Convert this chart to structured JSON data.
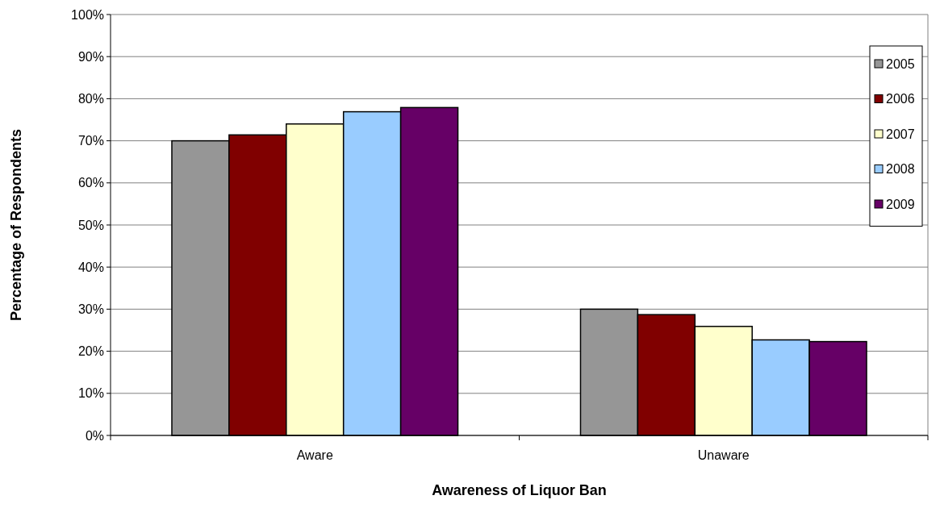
{
  "chart_data": {
    "type": "bar",
    "xlabel": "Awareness of Liquor Ban",
    "ylabel": "Percentage of Respondents",
    "categories": [
      "Aware",
      "Unaware"
    ],
    "series": [
      {
        "name": "2005",
        "color": "#969696",
        "values": [
          70.0,
          30.0
        ]
      },
      {
        "name": "2006",
        "color": "#800000",
        "values": [
          71.4,
          28.7
        ]
      },
      {
        "name": "2007",
        "color": "#ffffcc",
        "values": [
          74.0,
          25.9
        ]
      },
      {
        "name": "2008",
        "color": "#99ccff",
        "values": [
          76.9,
          22.7
        ]
      },
      {
        "name": "2009",
        "color": "#660066",
        "values": [
          77.9,
          22.3
        ]
      }
    ],
    "ylim": [
      0,
      100
    ],
    "yticks": [
      {
        "value": 0,
        "label": "0%"
      },
      {
        "value": 10,
        "label": "10%"
      },
      {
        "value": 20,
        "label": "20%"
      },
      {
        "value": 30,
        "label": "30%"
      },
      {
        "value": 40,
        "label": "40%"
      },
      {
        "value": 50,
        "label": "50%"
      },
      {
        "value": 60,
        "label": "60%"
      },
      {
        "value": 70,
        "label": "70%"
      },
      {
        "value": 80,
        "label": "80%"
      },
      {
        "value": 90,
        "label": "90%"
      },
      {
        "value": 100,
        "label": "100%"
      }
    ],
    "grid": "y",
    "legend": "top right"
  }
}
